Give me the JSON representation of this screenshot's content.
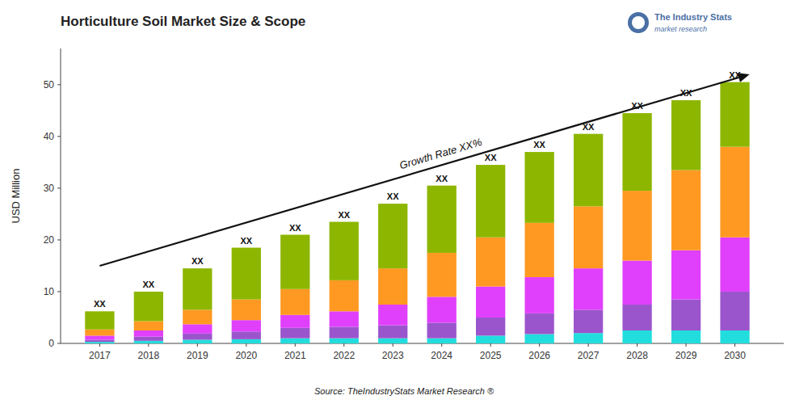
{
  "chart_data": {
    "type": "bar",
    "stacked": true,
    "title": "Horticulture Soil Market Size & Scope",
    "y_label": "USD Million",
    "x": [
      2017,
      2018,
      2019,
      2020,
      2021,
      2022,
      2023,
      2024,
      2025,
      2026,
      2027,
      2028,
      2029,
      2030
    ],
    "xlim": [
      2016.2,
      2031.0
    ],
    "xticks": [
      2017,
      2018,
      2019,
      2020,
      2021,
      2022,
      2023,
      2024,
      2025,
      2026,
      2027,
      2028,
      2029,
      2030
    ],
    "ylim": [
      0,
      57
    ],
    "yticks": [
      0,
      10,
      20,
      30,
      40,
      50
    ],
    "grid": false,
    "series": [
      {
        "color": "#22DDDD",
        "values": [
          0.3,
          0.5,
          0.7,
          0.8,
          1.0,
          1.0,
          1.0,
          1.0,
          1.5,
          1.8,
          2.0,
          2.5,
          2.5,
          2.5
        ]
      },
      {
        "color": "#9B55CC",
        "values": [
          0.4,
          0.8,
          1.2,
          1.5,
          2.0,
          2.2,
          2.5,
          3.0,
          3.5,
          4.0,
          4.5,
          5.0,
          6.0,
          7.5
        ]
      },
      {
        "color": "#E040FB",
        "values": [
          0.8,
          1.2,
          1.8,
          2.2,
          2.5,
          3.0,
          4.0,
          5.0,
          6.0,
          7.0,
          8.0,
          8.5,
          9.5,
          10.5
        ]
      },
      {
        "color": "#FF9922",
        "values": [
          1.2,
          1.8,
          2.8,
          4.0,
          5.0,
          6.0,
          7.0,
          8.5,
          9.5,
          10.5,
          12.0,
          13.5,
          15.5,
          17.5
        ]
      },
      {
        "color": "#8DB600",
        "values": [
          3.5,
          5.7,
          8.0,
          10.0,
          10.5,
          11.3,
          12.5,
          13.0,
          14.0,
          13.7,
          14.0,
          15.0,
          13.5,
          12.5
        ]
      }
    ],
    "annotations": [
      {
        "text": "XX",
        "x": 2017
      },
      {
        "text": "XX",
        "x": 2018
      },
      {
        "text": "XX",
        "x": 2019
      },
      {
        "text": "XX",
        "x": 2020
      },
      {
        "text": "XX",
        "x": 2021
      },
      {
        "text": "XX",
        "x": 2022
      },
      {
        "text": "XX",
        "x": 2023
      },
      {
        "text": "XX",
        "x": 2024
      },
      {
        "text": "XX",
        "x": 2025
      },
      {
        "text": "XX",
        "x": 2026
      },
      {
        "text": "XX",
        "x": 2027
      },
      {
        "text": "XX",
        "x": 2028
      },
      {
        "text": "XX",
        "x": 2029
      },
      {
        "text": "XX",
        "x": 2030
      },
      {
        "text": "Growth Rate XX%",
        "x": 2024.0,
        "y": 36.0,
        "arrow_from": [
          2017.0,
          15.0
        ],
        "arrow_to": [
          2030.3,
          52.0
        ]
      }
    ],
    "source": "Source: TheIndustryStats Market Research ®",
    "logo_texts": [
      "The Industry Stats",
      "market research"
    ]
  }
}
